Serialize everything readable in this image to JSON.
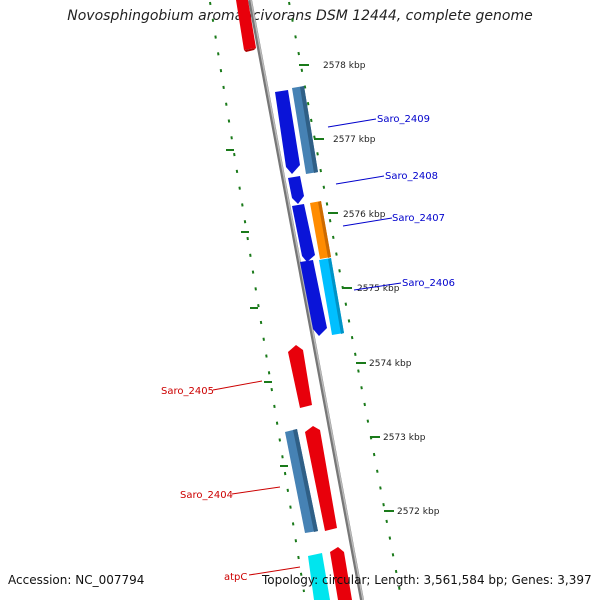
{
  "title": "Novosphingobium aromaticivorans DSM 12444, complete genome",
  "footer": {
    "accession": "Accession: NC_007794",
    "stats": "Topology: circular; Length: 3,561,584 bp; Genes: 3,397"
  },
  "ticks": [
    "2578 kbp",
    "2577 kbp",
    "2576 kbp",
    "2575 kbp",
    "2574 kbp",
    "2573 kbp",
    "2572 kbp"
  ],
  "gene_labels": {
    "saro_2409": "Saro_2409",
    "saro_2408": "Saro_2408",
    "saro_2407": "Saro_2407",
    "saro_2406": "Saro_2406",
    "saro_2405": "Saro_2405",
    "saro_2404": "Saro_2404",
    "atpc": "atpC"
  },
  "colors": {
    "forward_cds": "#e8000b",
    "reverse_cds": "#0a14d8",
    "steelblue_feature": "#4682b4",
    "orange_feature": "#ff8c00",
    "cyan_feature": "#00bfff",
    "backbone": "#888888",
    "tick_marks": "#1a7a1a",
    "label_blue": "#0000cc",
    "label_red": "#cc0000"
  }
}
